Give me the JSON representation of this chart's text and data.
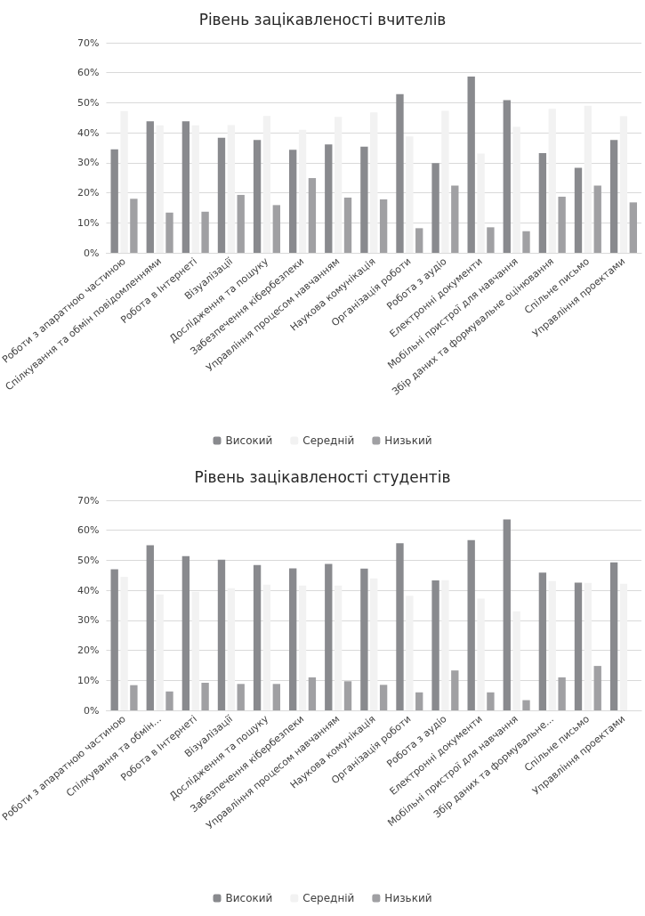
{
  "chart_data": [
    {
      "type": "bar",
      "title": "Рівень зацікавленості вчителів",
      "categories": [
        "Роботи з апаратною частиною",
        "Спілкування та обмін повідомленнями",
        "Робота в Інтернеті",
        "Візуалізації",
        "Дослідження та пошуку",
        "Забезпечення кібербезпеки",
        "Управління процесом навчанням",
        "Наукова комунікація",
        "Організація роботи",
        "Робота з аудіо",
        "Електронні документи",
        "Мобільні пристрої для навчання",
        "Збір даних та формувальне оцінювання",
        "Спільне письмо",
        "Управління проектами"
      ],
      "series": [
        {
          "name": "Високий",
          "color": "#898a8e",
          "values": [
            34.5,
            43.8,
            43.8,
            38.3,
            37.6,
            34.3,
            36.1,
            35.4,
            52.9,
            29.9,
            58.7,
            50.9,
            33.2,
            28.3,
            37.6
          ]
        },
        {
          "name": "Середній",
          "color": "#f2f2f2",
          "values": [
            47.2,
            42.5,
            42.5,
            42.6,
            45.6,
            41,
            45.3,
            46.8,
            38.8,
            47.3,
            33.1,
            42,
            48,
            49,
            45.5
          ]
        },
        {
          "name": "Низький",
          "color": "#a0a0a3",
          "values": [
            18,
            13.4,
            13.7,
            19.3,
            15.9,
            24.9,
            18.4,
            17.8,
            8.2,
            22.4,
            8.5,
            7.2,
            18.7,
            22.4,
            16.8
          ]
        }
      ],
      "ylim": [
        0,
        70
      ],
      "yticks": [
        {
          "value": 0,
          "label": "0%"
        },
        {
          "value": 10,
          "label": "10%"
        },
        {
          "value": 20,
          "label": "20%"
        },
        {
          "value": 30,
          "label": "30%"
        },
        {
          "value": 40,
          "label": "40%"
        },
        {
          "value": 50,
          "label": "50%"
        },
        {
          "value": 60,
          "label": "60%"
        },
        {
          "value": 70,
          "label": "70%"
        }
      ],
      "grid": "y",
      "legend": "bottom"
    },
    {
      "type": "bar",
      "title": "Рівень зацікавленості студентів",
      "categories": [
        "Роботи з апаратною частиною",
        "Спілкування та обмін...",
        "Робота в Інтернеті",
        "Візуалізації",
        "Дослідження та пошуку",
        "Забезпечення кібербезпеки",
        "Управління процесом навчанням",
        "Наукова комунікація",
        "Організація роботи",
        "Робота з аудіо",
        "Електронні документи",
        "Мобільні пристрої для навчання",
        "Збір даних та формувальне...",
        "Спільне письмо",
        "Управління проектами"
      ],
      "series": [
        {
          "name": "Високий",
          "color": "#898a8e",
          "values": [
            47,
            55,
            51.4,
            50.2,
            48.4,
            47.3,
            48.8,
            47.2,
            55.7,
            43.3,
            56.7,
            63.6,
            45.9,
            42.6,
            49.3
          ]
        },
        {
          "name": "Середній",
          "color": "#f2f2f2",
          "values": [
            44.5,
            38.6,
            39.5,
            40.7,
            41.9,
            41.6,
            41.6,
            44,
            38.2,
            43.4,
            37.2,
            33,
            43.1,
            42.5,
            42.2
          ]
        },
        {
          "name": "Низький",
          "color": "#a0a0a3",
          "values": [
            8.4,
            6.3,
            9.2,
            8.8,
            8.8,
            11,
            9.7,
            8.5,
            6,
            13.3,
            6,
            3.4,
            11,
            14.8,
            null
          ]
        }
      ],
      "ylim": [
        0,
        70
      ],
      "yticks": [
        {
          "value": 0,
          "label": "0%"
        },
        {
          "value": 10,
          "label": "10%"
        },
        {
          "value": 20,
          "label": "20%"
        },
        {
          "value": 30,
          "label": "30%"
        },
        {
          "value": 40,
          "label": "40%"
        },
        {
          "value": 50,
          "label": "50%"
        },
        {
          "value": 60,
          "label": "60%"
        },
        {
          "value": 70,
          "label": "70%"
        }
      ],
      "grid": "y",
      "legend": "bottom"
    }
  ]
}
